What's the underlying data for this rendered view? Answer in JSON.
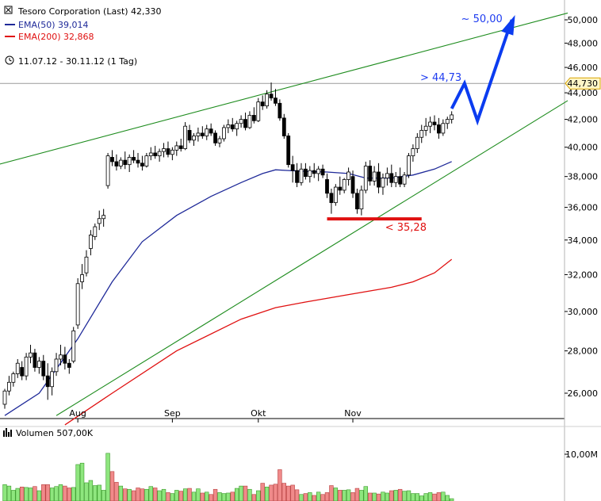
{
  "chart_data": {
    "type": "candlestick",
    "title": "Tesoro Corporation (Last) 42,330",
    "period": "11.07.12 - 30.11.12 (1 Tag)",
    "legend": [
      {
        "label": "EMA(50) 39,014",
        "color": "#1f2a99"
      },
      {
        "label": "EMA(200) 32,868",
        "color": "#e01010"
      }
    ],
    "price_axis": {
      "log_scale": true,
      "tick_values": [
        26,
        28,
        30,
        32,
        34,
        36,
        38,
        40,
        42,
        44,
        46,
        48,
        50
      ],
      "tick_labels": [
        "26,000",
        "28,000",
        "30,000",
        "32,000",
        "34,000",
        "36,000",
        "38,000",
        "40,000",
        "42,000",
        "44,000",
        "46,000",
        "48,000",
        "50,000"
      ],
      "marker_value": 44.73,
      "marker_label": "44,730"
    },
    "x_axis": {
      "labels": [
        {
          "label": "Aug",
          "index": 17
        },
        {
          "label": "Sep",
          "index": 39
        },
        {
          "label": "Okt",
          "index": 59
        },
        {
          "label": "Nov",
          "index": 81
        }
      ]
    },
    "ohlc": [
      [
        25.5,
        26.2,
        25.3,
        26.1
      ],
      [
        26.1,
        26.8,
        25.9,
        26.5
      ],
      [
        26.5,
        27.0,
        26.3,
        26.9
      ],
      [
        26.9,
        27.6,
        26.7,
        27.4
      ],
      [
        27.2,
        27.5,
        26.6,
        26.8
      ],
      [
        26.8,
        27.9,
        26.6,
        27.7
      ],
      [
        27.7,
        28.3,
        27.4,
        27.9
      ],
      [
        27.9,
        28.1,
        27.0,
        27.2
      ],
      [
        27.2,
        27.7,
        26.9,
        27.5
      ],
      [
        27.5,
        27.8,
        26.6,
        26.8
      ],
      [
        26.8,
        27.4,
        25.7,
        26.3
      ],
      [
        26.3,
        27.2,
        25.9,
        27.0
      ],
      [
        27.0,
        27.9,
        26.8,
        27.6
      ],
      [
        27.6,
        28.3,
        27.3,
        27.8
      ],
      [
        27.8,
        28.2,
        27.1,
        27.4
      ],
      [
        27.4,
        27.6,
        26.9,
        27.2
      ],
      [
        27.5,
        29.2,
        27.4,
        29.0
      ],
      [
        29.3,
        31.8,
        29.1,
        31.5
      ],
      [
        31.6,
        32.6,
        31.2,
        32.0
      ],
      [
        32.1,
        33.4,
        31.9,
        33.0
      ],
      [
        33.5,
        34.6,
        33.1,
        34.3
      ],
      [
        34.2,
        35.0,
        34.0,
        34.8
      ],
      [
        35.0,
        35.8,
        34.6,
        35.3
      ],
      [
        35.3,
        35.9,
        34.8,
        35.5
      ],
      [
        37.4,
        39.6,
        37.2,
        39.4
      ],
      [
        39.3,
        39.8,
        38.7,
        39.0
      ],
      [
        39.0,
        39.5,
        38.4,
        38.7
      ],
      [
        38.7,
        39.3,
        38.5,
        39.1
      ],
      [
        39.1,
        39.7,
        38.5,
        38.8
      ],
      [
        38.8,
        39.5,
        38.3,
        39.3
      ],
      [
        39.3,
        39.8,
        38.9,
        39.1
      ],
      [
        39.1,
        39.6,
        38.6,
        38.9
      ],
      [
        38.9,
        39.4,
        38.4,
        38.7
      ],
      [
        38.7,
        39.6,
        38.6,
        39.4
      ],
      [
        39.4,
        40.0,
        39.1,
        39.6
      ],
      [
        39.6,
        40.1,
        39.2,
        39.4
      ],
      [
        39.4,
        39.9,
        39.0,
        39.7
      ],
      [
        39.7,
        40.3,
        39.3,
        39.9
      ],
      [
        39.9,
        40.4,
        39.3,
        39.5
      ],
      [
        39.5,
        40.0,
        39.1,
        39.8
      ],
      [
        39.8,
        40.4,
        39.4,
        40.1
      ],
      [
        40.1,
        40.6,
        39.7,
        39.9
      ],
      [
        39.9,
        41.8,
        39.8,
        41.5
      ],
      [
        41.2,
        41.6,
        40.3,
        40.5
      ],
      [
        40.5,
        41.0,
        40.1,
        40.8
      ],
      [
        40.8,
        41.4,
        40.4,
        41.0
      ],
      [
        41.0,
        41.5,
        40.6,
        40.8
      ],
      [
        40.8,
        41.6,
        40.5,
        41.3
      ],
      [
        41.3,
        41.7,
        40.8,
        41.0
      ],
      [
        41.0,
        41.2,
        40.1,
        40.3
      ],
      [
        40.3,
        40.8,
        40.0,
        40.6
      ],
      [
        40.6,
        41.6,
        40.4,
        41.4
      ],
      [
        41.4,
        42.0,
        41.0,
        41.6
      ],
      [
        41.6,
        42.1,
        41.1,
        41.3
      ],
      [
        41.3,
        41.9,
        40.8,
        41.7
      ],
      [
        41.7,
        42.3,
        41.4,
        42.0
      ],
      [
        42.0,
        42.5,
        41.2,
        41.4
      ],
      [
        41.4,
        42.6,
        41.3,
        42.3
      ],
      [
        42.3,
        42.9,
        41.7,
        41.9
      ],
      [
        41.9,
        43.6,
        41.8,
        43.3
      ],
      [
        43.3,
        43.8,
        42.7,
        43.0
      ],
      [
        43.0,
        44.2,
        42.8,
        43.9
      ],
      [
        43.9,
        44.8,
        43.4,
        43.6
      ],
      [
        43.6,
        44.3,
        43.0,
        43.2
      ],
      [
        43.2,
        43.5,
        41.9,
        42.1
      ],
      [
        42.1,
        42.4,
        40.6,
        40.8
      ],
      [
        40.8,
        41.0,
        38.6,
        38.8
      ],
      [
        38.8,
        39.4,
        37.6,
        38.4
      ],
      [
        38.4,
        38.9,
        37.3,
        37.6
      ],
      [
        37.6,
        38.9,
        37.4,
        38.5
      ],
      [
        38.5,
        38.9,
        37.8,
        38.0
      ],
      [
        38.0,
        38.7,
        37.6,
        38.4
      ],
      [
        38.4,
        38.9,
        37.9,
        38.2
      ],
      [
        38.2,
        38.7,
        37.7,
        38.5
      ],
      [
        38.5,
        38.8,
        37.9,
        38.1
      ],
      [
        37.8,
        38.2,
        36.6,
        36.9
      ],
      [
        36.9,
        37.2,
        35.6,
        36.3
      ],
      [
        36.3,
        37.5,
        36.1,
        37.3
      ],
      [
        37.3,
        38.0,
        36.8,
        37.1
      ],
      [
        37.1,
        37.9,
        36.9,
        37.8
      ],
      [
        37.8,
        38.6,
        37.4,
        38.3
      ],
      [
        38.0,
        38.4,
        36.6,
        36.9
      ],
      [
        36.9,
        37.2,
        35.6,
        35.9
      ],
      [
        35.9,
        37.4,
        35.5,
        37.1
      ],
      [
        37.1,
        39.0,
        36.9,
        38.7
      ],
      [
        38.7,
        39.1,
        37.4,
        37.7
      ],
      [
        37.7,
        38.7,
        37.4,
        38.3
      ],
      [
        38.3,
        38.9,
        36.9,
        37.3
      ],
      [
        37.3,
        38.2,
        36.8,
        37.9
      ],
      [
        37.9,
        38.6,
        37.4,
        38.2
      ],
      [
        38.2,
        38.8,
        37.3,
        37.6
      ],
      [
        37.6,
        38.3,
        37.3,
        38.0
      ],
      [
        38.0,
        38.6,
        37.3,
        37.5
      ],
      [
        37.5,
        38.3,
        37.3,
        38.1
      ],
      [
        38.1,
        39.6,
        37.9,
        39.4
      ],
      [
        39.4,
        40.2,
        39.0,
        39.9
      ],
      [
        39.9,
        41.0,
        39.6,
        40.7
      ],
      [
        40.7,
        41.6,
        40.3,
        41.2
      ],
      [
        41.2,
        42.1,
        40.8,
        41.5
      ],
      [
        41.5,
        42.2,
        41.0,
        41.8
      ],
      [
        41.8,
        42.3,
        41.2,
        41.6
      ],
      [
        41.6,
        42.1,
        40.6,
        41.0
      ],
      [
        41.0,
        42.0,
        40.8,
        41.7
      ],
      [
        41.7,
        42.2,
        41.3,
        42.0
      ],
      [
        42.0,
        42.6,
        41.7,
        42.33
      ]
    ],
    "ema50": [
      [
        0,
        25.0
      ],
      [
        8,
        26.0
      ],
      [
        17,
        28.6
      ],
      [
        25,
        31.6
      ],
      [
        32,
        33.9
      ],
      [
        40,
        35.5
      ],
      [
        48,
        36.7
      ],
      [
        55,
        37.6
      ],
      [
        60,
        38.2
      ],
      [
        63,
        38.45
      ],
      [
        66,
        38.4
      ],
      [
        70,
        38.35
      ],
      [
        75,
        38.3
      ],
      [
        80,
        38.2
      ],
      [
        84,
        37.9
      ],
      [
        90,
        37.9
      ],
      [
        95,
        38.1
      ],
      [
        100,
        38.5
      ],
      [
        104,
        39.01
      ]
    ],
    "ema200": [
      [
        14,
        24.6
      ],
      [
        25,
        26.0
      ],
      [
        40,
        28.0
      ],
      [
        55,
        29.6
      ],
      [
        63,
        30.2
      ],
      [
        70,
        30.5
      ],
      [
        80,
        30.9
      ],
      [
        90,
        31.3
      ],
      [
        95,
        31.6
      ],
      [
        100,
        32.1
      ],
      [
        104,
        32.87
      ]
    ],
    "trendlines": [
      {
        "from": [
          -12,
          38.0
        ],
        "to": [
          131,
          50.6
        ]
      },
      {
        "from": [
          12,
          25.0
        ],
        "to": [
          131,
          43.4
        ]
      }
    ],
    "support": {
      "value": 35.28,
      "label": "< 35,28",
      "from_index": 75,
      "to_index": 97
    },
    "projection": {
      "points": [
        [
          104,
          42.8
        ],
        [
          107,
          44.73
        ],
        [
          110,
          41.9
        ],
        [
          118,
          50.0
        ]
      ],
      "label_high": "> 44,73",
      "label_target": "~ 50,00"
    },
    "volume": {
      "title": "Volumen 507,00K",
      "tick_label": "10,00M",
      "tick_value": 10,
      "values": [
        3.5,
        3.2,
        2.3,
        2.7,
        3.0,
        2.9,
        2.8,
        3.1,
        2.2,
        3.5,
        3.5,
        2.8,
        3.1,
        3.5,
        3.2,
        2.8,
        2.9,
        7.8,
        8.1,
        3.9,
        4.4,
        3.3,
        3.4,
        2.3,
        10.2,
        6.3,
        4.0,
        3.2,
        2.6,
        2.5,
        2.2,
        2.8,
        2.6,
        2.5,
        3.1,
        2.8,
        2.2,
        2.5,
        1.8,
        1.6,
        2.3,
        2.1,
        2.6,
        2.7,
        1.9,
        2.6,
        1.7,
        1.9,
        1.4,
        2.5,
        1.8,
        1.6,
        1.7,
        1.9,
        2.7,
        3.2,
        3.2,
        2.5,
        1.4,
        2.2,
        3.8,
        3.0,
        3.4,
        3.6,
        6.7,
        3.8,
        3.2,
        3.4,
        2.4,
        1.4,
        1.6,
        1.8,
        1.2,
        1.9,
        1.4,
        1.8,
        3.3,
        2.8,
        2.3,
        2.3,
        2.4,
        1.8,
        2.7,
        2.3,
        3.1,
        1.7,
        1.7,
        1.5,
        1.9,
        1.7,
        2.2,
        2.3,
        2.5,
        2.1,
        2.2,
        1.6,
        1.6,
        1.1,
        1.6,
        1.8,
        1.5,
        1.8,
        1.9,
        1.2,
        0.5
      ],
      "up_color": "#8ee67e",
      "down_color": "#f08a8a"
    },
    "colors": {
      "trend": "#1e8c1e",
      "projection": "#0b3cf0",
      "support": "#e01010",
      "label_red": "#e01010",
      "label_blue": "#1e3cf0"
    }
  }
}
